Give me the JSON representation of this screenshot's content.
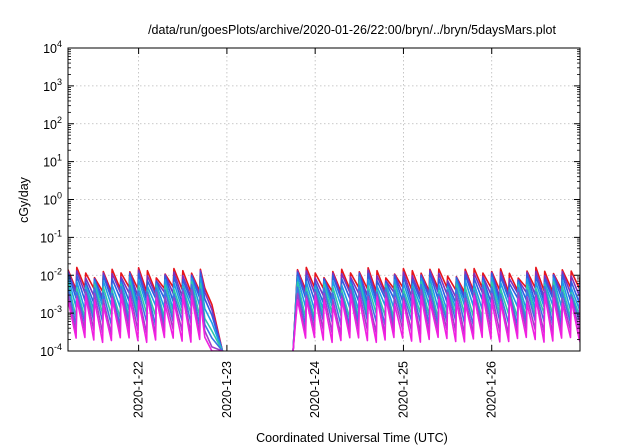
{
  "chart_data": {
    "type": "line",
    "title": "/data/run/goesPlots/archive/2020-01-26/22:00/bryn/../bryn/5daysMars.plot",
    "xlabel": "Coordinated Universal Time (UTC)",
    "ylabel": "cGy/day",
    "y_scale": "log",
    "ylim": [
      0.0001,
      10000
    ],
    "xlim": [
      21.2,
      27.0
    ],
    "grid": true,
    "y_ticks": [
      {
        "value": 0.0001,
        "base": "10",
        "exp": "-4"
      },
      {
        "value": 0.001,
        "base": "10",
        "exp": "-3"
      },
      {
        "value": 0.01,
        "base": "10",
        "exp": "-2"
      },
      {
        "value": 0.1,
        "base": "10",
        "exp": "-1"
      },
      {
        "value": 1,
        "base": "10",
        "exp": "0"
      },
      {
        "value": 10,
        "base": "10",
        "exp": "1"
      },
      {
        "value": 100,
        "base": "10",
        "exp": "2"
      },
      {
        "value": 1000,
        "base": "10",
        "exp": "3"
      },
      {
        "value": 10000,
        "base": "10",
        "exp": "4"
      }
    ],
    "x_ticks": [
      {
        "value": 22,
        "label": "2020-1-22"
      },
      {
        "value": 23,
        "label": "2020-1-23"
      },
      {
        "value": 24,
        "label": "2020-1-24"
      },
      {
        "value": 25,
        "label": "2020-1-25"
      },
      {
        "value": 26,
        "label": "2020-1-26"
      }
    ],
    "segments": [
      {
        "x_start": 21.2,
        "x_end": 22.75,
        "decay_end": 22.95
      },
      {
        "x_start": 23.8,
        "x_end": 27.0
      }
    ],
    "cycle_days": 0.1,
    "series": [
      {
        "color": "#e8141b",
        "peak": 0.0125,
        "trough": 0.0042
      },
      {
        "color": "#7f2fbf",
        "peak": 0.0105,
        "trough": 0.0031
      },
      {
        "color": "#2e5fe0",
        "peak": 0.0088,
        "trough": 0.0022
      },
      {
        "color": "#1d9be8",
        "peak": 0.0068,
        "trough": 0.0014
      },
      {
        "color": "#2ec9a8",
        "peak": 0.0052,
        "trough": 0.00085
      },
      {
        "color": "#3c74e6",
        "peak": 0.0042,
        "trough": 0.00055
      },
      {
        "color": "#a040c8",
        "peak": 0.0032,
        "trough": 0.00032
      },
      {
        "color": "#f020e0",
        "peak": 0.0024,
        "trough": 0.0002
      }
    ]
  }
}
